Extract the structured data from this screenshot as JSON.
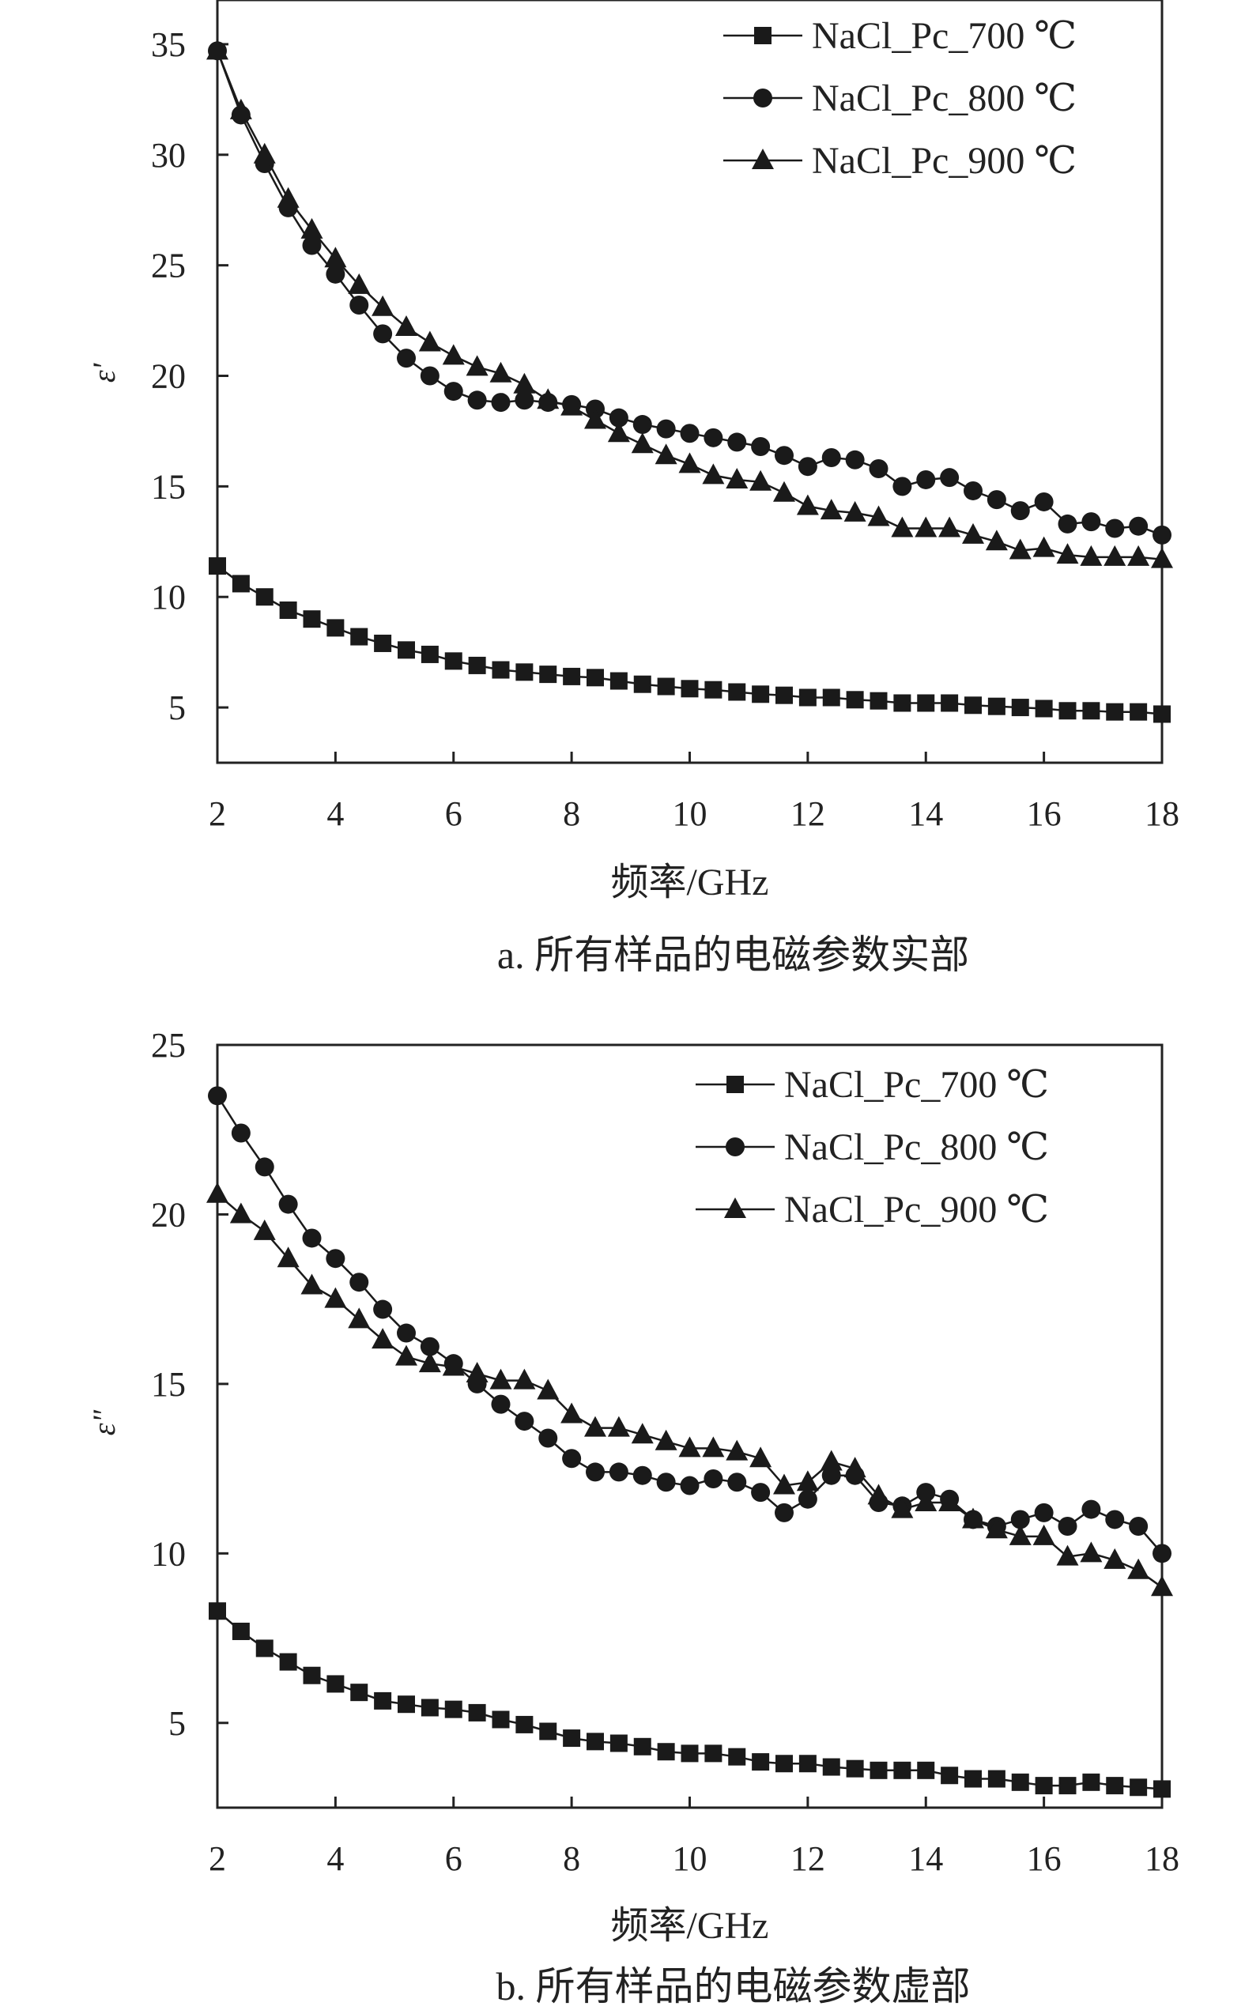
{
  "chart_data": [
    {
      "type": "line",
      "caption": "a. 所有样品的电磁参数实部",
      "xlabel": "频率/GHz",
      "ylabel": "ε'",
      "xlim": [
        2,
        18
      ],
      "ylim": [
        2.5,
        37
      ],
      "xticks": [
        2,
        4,
        6,
        8,
        10,
        12,
        14,
        16,
        18
      ],
      "yticks": [
        5,
        10,
        15,
        20,
        25,
        30,
        35
      ],
      "grid": false,
      "legend": "top-right",
      "x": [
        2,
        2.4,
        2.8,
        3.2,
        3.6,
        4,
        4.4,
        4.8,
        5.2,
        5.6,
        6,
        6.4,
        6.8,
        7.2,
        7.6,
        8,
        8.4,
        8.8,
        9.2,
        9.6,
        10,
        10.4,
        10.8,
        11.2,
        11.6,
        12,
        12.4,
        12.8,
        13.2,
        13.6,
        14,
        14.4,
        14.8,
        15.2,
        15.6,
        16,
        16.4,
        16.8,
        17.2,
        17.6,
        18
      ],
      "series": [
        {
          "name": "NaCl_Pc_700 ℃",
          "marker": "square",
          "values": [
            11.4,
            10.6,
            10.0,
            9.4,
            9.0,
            8.6,
            8.2,
            7.9,
            7.6,
            7.4,
            7.1,
            6.9,
            6.7,
            6.6,
            6.5,
            6.4,
            6.35,
            6.2,
            6.05,
            5.95,
            5.85,
            5.8,
            5.7,
            5.6,
            5.55,
            5.45,
            5.45,
            5.35,
            5.3,
            5.2,
            5.2,
            5.2,
            5.1,
            5.05,
            5.0,
            4.95,
            4.85,
            4.85,
            4.8,
            4.8,
            4.7
          ]
        },
        {
          "name": "NaCl_Pc_800 ℃",
          "marker": "circle",
          "values": [
            34.7,
            31.8,
            29.6,
            27.6,
            25.9,
            24.6,
            23.2,
            21.9,
            20.8,
            20.0,
            19.3,
            18.9,
            18.8,
            18.9,
            18.8,
            18.7,
            18.5,
            18.1,
            17.8,
            17.6,
            17.4,
            17.2,
            17.0,
            16.8,
            16.4,
            15.9,
            16.3,
            16.2,
            15.8,
            15.0,
            15.3,
            15.4,
            14.8,
            14.4,
            13.9,
            14.3,
            13.3,
            13.4,
            13.1,
            13.2,
            12.8
          ]
        },
        {
          "name": "NaCl_Pc_900 ℃",
          "marker": "triangle",
          "values": [
            34.7,
            32.0,
            30.0,
            28.0,
            26.6,
            25.3,
            24.1,
            23.1,
            22.2,
            21.5,
            20.9,
            20.4,
            20.1,
            19.6,
            18.9,
            18.6,
            18.0,
            17.4,
            16.9,
            16.4,
            16.0,
            15.5,
            15.3,
            15.2,
            14.7,
            14.1,
            13.9,
            13.8,
            13.6,
            13.1,
            13.1,
            13.1,
            12.8,
            12.5,
            12.1,
            12.2,
            11.9,
            11.8,
            11.8,
            11.8,
            11.7
          ]
        }
      ]
    },
    {
      "type": "line",
      "caption": "b. 所有样品的电磁参数虚部",
      "xlabel": "频率/GHz",
      "ylabel": "ε\"",
      "xlim": [
        2,
        18
      ],
      "ylim": [
        2.5,
        25
      ],
      "xticks": [
        2,
        4,
        6,
        8,
        10,
        12,
        14,
        16,
        18
      ],
      "yticks": [
        5,
        10,
        15,
        20,
        25
      ],
      "grid": false,
      "legend": "top-right",
      "x": [
        2,
        2.4,
        2.8,
        3.2,
        3.6,
        4,
        4.4,
        4.8,
        5.2,
        5.6,
        6,
        6.4,
        6.8,
        7.2,
        7.6,
        8,
        8.4,
        8.8,
        9.2,
        9.6,
        10,
        10.4,
        10.8,
        11.2,
        11.6,
        12,
        12.4,
        12.8,
        13.2,
        13.6,
        14,
        14.4,
        14.8,
        15.2,
        15.6,
        16,
        16.4,
        16.8,
        17.2,
        17.6,
        18
      ],
      "series": [
        {
          "name": "NaCl_Pc_700 ℃",
          "marker": "square",
          "values": [
            8.3,
            7.7,
            7.2,
            6.8,
            6.4,
            6.15,
            5.9,
            5.65,
            5.55,
            5.45,
            5.4,
            5.3,
            5.1,
            4.95,
            4.75,
            4.55,
            4.45,
            4.4,
            4.3,
            4.15,
            4.1,
            4.1,
            4.0,
            3.85,
            3.8,
            3.8,
            3.7,
            3.65,
            3.6,
            3.6,
            3.6,
            3.45,
            3.35,
            3.35,
            3.25,
            3.15,
            3.15,
            3.25,
            3.15,
            3.1,
            3.05
          ]
        },
        {
          "name": "NaCl_Pc_800 ℃",
          "marker": "circle",
          "values": [
            23.5,
            22.4,
            21.4,
            20.3,
            19.3,
            18.7,
            18.0,
            17.2,
            16.5,
            16.1,
            15.6,
            15.0,
            14.4,
            13.9,
            13.4,
            12.8,
            12.4,
            12.4,
            12.3,
            12.1,
            12.0,
            12.2,
            12.1,
            11.8,
            11.2,
            11.6,
            12.3,
            12.3,
            11.5,
            11.4,
            11.8,
            11.6,
            11.0,
            10.8,
            11.0,
            11.2,
            10.8,
            11.3,
            11.0,
            10.8,
            10.0
          ]
        },
        {
          "name": "NaCl_Pc_900 ℃",
          "marker": "triangle",
          "values": [
            20.6,
            20.0,
            19.5,
            18.7,
            17.9,
            17.5,
            16.9,
            16.3,
            15.8,
            15.6,
            15.5,
            15.3,
            15.1,
            15.1,
            14.8,
            14.1,
            13.7,
            13.7,
            13.5,
            13.3,
            13.1,
            13.1,
            13.0,
            12.8,
            12.0,
            12.1,
            12.7,
            12.5,
            11.7,
            11.3,
            11.5,
            11.5,
            11.0,
            10.7,
            10.5,
            10.5,
            9.9,
            10.0,
            9.8,
            9.5,
            9.0
          ]
        }
      ]
    }
  ]
}
